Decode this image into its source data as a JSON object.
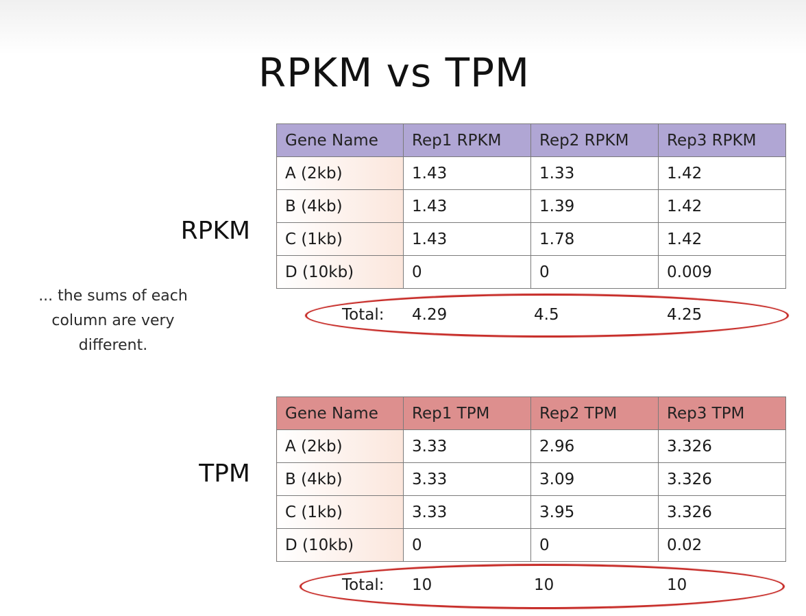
{
  "title": "RPKM vs TPM",
  "note": "... the sums of each column are very different.",
  "rpkm": {
    "section_label": "RPKM",
    "headers": [
      "Gene Name",
      "Rep1 RPKM",
      "Rep2 RPKM",
      "Rep3 RPKM"
    ],
    "rows": [
      [
        "A (2kb)",
        "1.43",
        "1.33",
        "1.42"
      ],
      [
        "B (4kb)",
        "1.43",
        "1.39",
        "1.42"
      ],
      [
        "C (1kb)",
        "1.43",
        "1.78",
        "1.42"
      ],
      [
        "D (10kb)",
        "0",
        "0",
        "0.009"
      ]
    ],
    "total_label": "Total:",
    "totals": [
      "4.29",
      "4.5",
      "4.25"
    ],
    "header_color": "#b0a6d4"
  },
  "tpm": {
    "section_label": "TPM",
    "headers": [
      "Gene Name",
      "Rep1 TPM",
      "Rep2 TPM",
      "Rep3 TPM"
    ],
    "rows": [
      [
        "A (2kb)",
        "3.33",
        "2.96",
        "3.326"
      ],
      [
        "B (4kb)",
        "3.33",
        "3.09",
        "3.326"
      ],
      [
        "C (1kb)",
        "3.33",
        "3.95",
        "3.326"
      ],
      [
        "D (10kb)",
        "0",
        "0",
        "0.02"
      ]
    ],
    "total_label": "Total:",
    "totals": [
      "10",
      "10",
      "10"
    ],
    "header_color": "#dd8f8e"
  },
  "highlight_color": "#c8302c"
}
